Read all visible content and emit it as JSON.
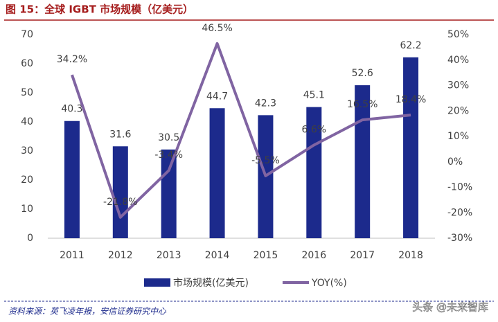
{
  "chart_data": {
    "type": "bar_line",
    "title": "图 15：全球 IGBT 市场规模（亿美元）",
    "categories": [
      "2011",
      "2012",
      "2013",
      "2014",
      "2015",
      "2016",
      "2017",
      "2018"
    ],
    "series": [
      {
        "name": "市场规模(亿美元)",
        "type": "bar",
        "color": "#1c2a8c",
        "values": [
          40.3,
          31.6,
          30.5,
          44.7,
          42.3,
          45.1,
          52.6,
          62.2
        ]
      },
      {
        "name": "YOY(%)",
        "type": "line",
        "axis": "y2",
        "color": "#8064a2",
        "values": [
          34.2,
          -21.8,
          -3.4,
          46.5,
          -5.5,
          6.6,
          16.5,
          18.4
        ],
        "value_labels": [
          "34.2%",
          "-21.8%",
          "-3.4%",
          "46.5%",
          "-5.5%",
          "6.6%",
          "16.5%",
          "18.4%"
        ]
      }
    ],
    "ylim": [
      0,
      70
    ],
    "yticks": [
      0,
      10,
      20,
      30,
      40,
      50,
      60,
      70
    ],
    "y2lim": [
      -30,
      50
    ],
    "y2ticks": [
      {
        "value": -30,
        "label": "-30%"
      },
      {
        "value": -20,
        "label": "-20%"
      },
      {
        "value": -10,
        "label": "-10%"
      },
      {
        "value": 0,
        "label": "0%"
      },
      {
        "value": 10,
        "label": "10%"
      },
      {
        "value": 20,
        "label": "20%"
      },
      {
        "value": 30,
        "label": "30%"
      },
      {
        "value": 40,
        "label": "40%"
      },
      {
        "value": 50,
        "label": "50%"
      }
    ],
    "source": "资料来源：英飞凌年报，安信证券研究中心",
    "watermark": "头条 @未来智库"
  }
}
